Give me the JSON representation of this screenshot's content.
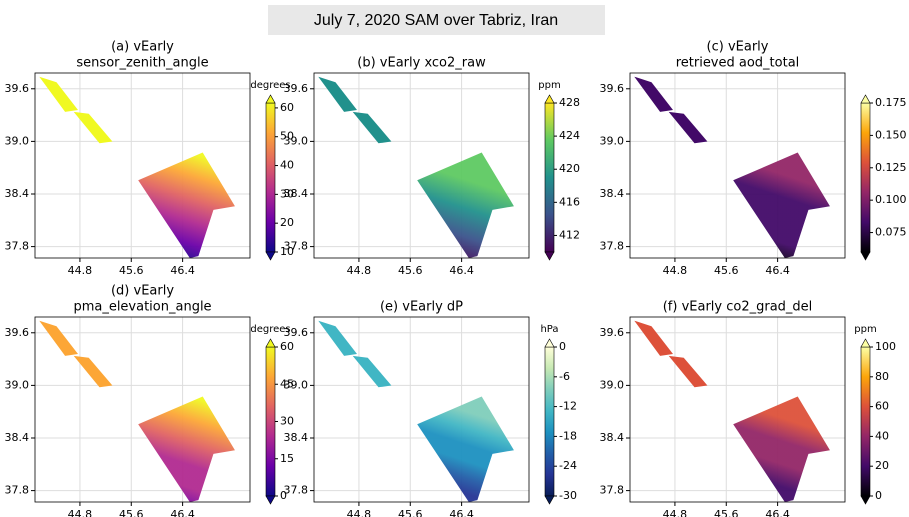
{
  "title": "July 7, 2020 SAM over Tabriz, Iran",
  "chart_data": [
    {
      "type": "map",
      "title": [
        "(a) vEarly",
        "sensor_zenith_angle"
      ],
      "xlim": [
        44.1,
        47.45
      ],
      "ylim": [
        37.67,
        39.78
      ],
      "xticks": [
        44.8,
        45.6,
        46.4
      ],
      "yticks": [
        37.8,
        38.4,
        {
          "value": 39,
          "label": "39.0"
        },
        39.6
      ],
      "grid": true,
      "colorbar": {
        "label": "degrees",
        "colormap": "plasma",
        "clim": [
          10,
          61.7
        ],
        "ticks": [
          10,
          20,
          30,
          40,
          50,
          60
        ]
      }
    },
    {
      "type": "map",
      "title": [
        "(b) vEarly xco2_raw"
      ],
      "xlim": [
        44.1,
        47.45
      ],
      "ylim": [
        37.67,
        39.78
      ],
      "xticks": [
        44.8,
        45.6,
        46.4
      ],
      "yticks": [
        37.8,
        38.4,
        {
          "value": 39,
          "label": "39.0"
        },
        39.6
      ],
      "grid": true,
      "colorbar": {
        "label": "ppm",
        "colormap": "viridis",
        "clim": [
          410,
          428
        ],
        "ticks": [
          412,
          416,
          420,
          424,
          428
        ]
      }
    },
    {
      "type": "map",
      "title": [
        "(c) vEarly",
        "retrieved aod_total"
      ],
      "xlim": [
        44.1,
        47.45
      ],
      "ylim": [
        37.67,
        39.78
      ],
      "xticks": [
        44.8,
        45.6,
        46.4
      ],
      "yticks": [
        37.8,
        38.4,
        {
          "value": 39,
          "label": "39.0"
        },
        39.6
      ],
      "grid": true,
      "colorbar": {
        "colormap": "inferno",
        "clim": [
          0.06,
          0.175
        ],
        "ticks": [
          0.075,
          {
            "value": 0.1,
            "label": "0.100"
          },
          0.125,
          {
            "value": 0.15,
            "label": "0.150"
          },
          0.175
        ]
      }
    },
    {
      "type": "map",
      "title": [
        "(d) vEarly",
        "pma_elevation_angle"
      ],
      "xlim": [
        44.1,
        47.45
      ],
      "ylim": [
        37.67,
        39.78
      ],
      "xticks": [
        44.8,
        45.6,
        46.4
      ],
      "yticks": [
        37.8,
        38.4,
        {
          "value": 39,
          "label": "39.0"
        },
        39.6
      ],
      "grid": true,
      "colorbar": {
        "label": "degrees",
        "colormap": "plasma",
        "clim": [
          0,
          60
        ],
        "ticks": [
          0,
          15,
          30,
          45,
          60
        ]
      }
    },
    {
      "type": "map",
      "title": [
        "(e) vEarly dP"
      ],
      "xlim": [
        44.1,
        47.45
      ],
      "ylim": [
        37.67,
        39.78
      ],
      "xticks": [
        44.8,
        45.6,
        46.4
      ],
      "yticks": [
        37.8,
        38.4,
        {
          "value": 39,
          "label": "39.0"
        },
        39.6
      ],
      "grid": true,
      "colorbar": {
        "label": "hPa",
        "colormap": "YlGnBu_r",
        "clim": [
          -30,
          0
        ],
        "ticks": [
          -30,
          -24,
          -18,
          -12,
          -6,
          0
        ]
      }
    },
    {
      "type": "map",
      "title": [
        "(f) vEarly co2_grad_del"
      ],
      "xlim": [
        44.1,
        47.45
      ],
      "ylim": [
        37.67,
        39.78
      ],
      "xticks": [
        44.8,
        45.6,
        46.4
      ],
      "yticks": [
        37.8,
        38.4,
        {
          "value": 39,
          "label": "39.0"
        },
        39.6
      ],
      "grid": true,
      "colorbar": {
        "label": "ppm",
        "colormap": "inferno",
        "clim": [
          0,
          100
        ],
        "ticks": [
          0,
          20,
          40,
          60,
          80,
          100
        ]
      }
    }
  ]
}
